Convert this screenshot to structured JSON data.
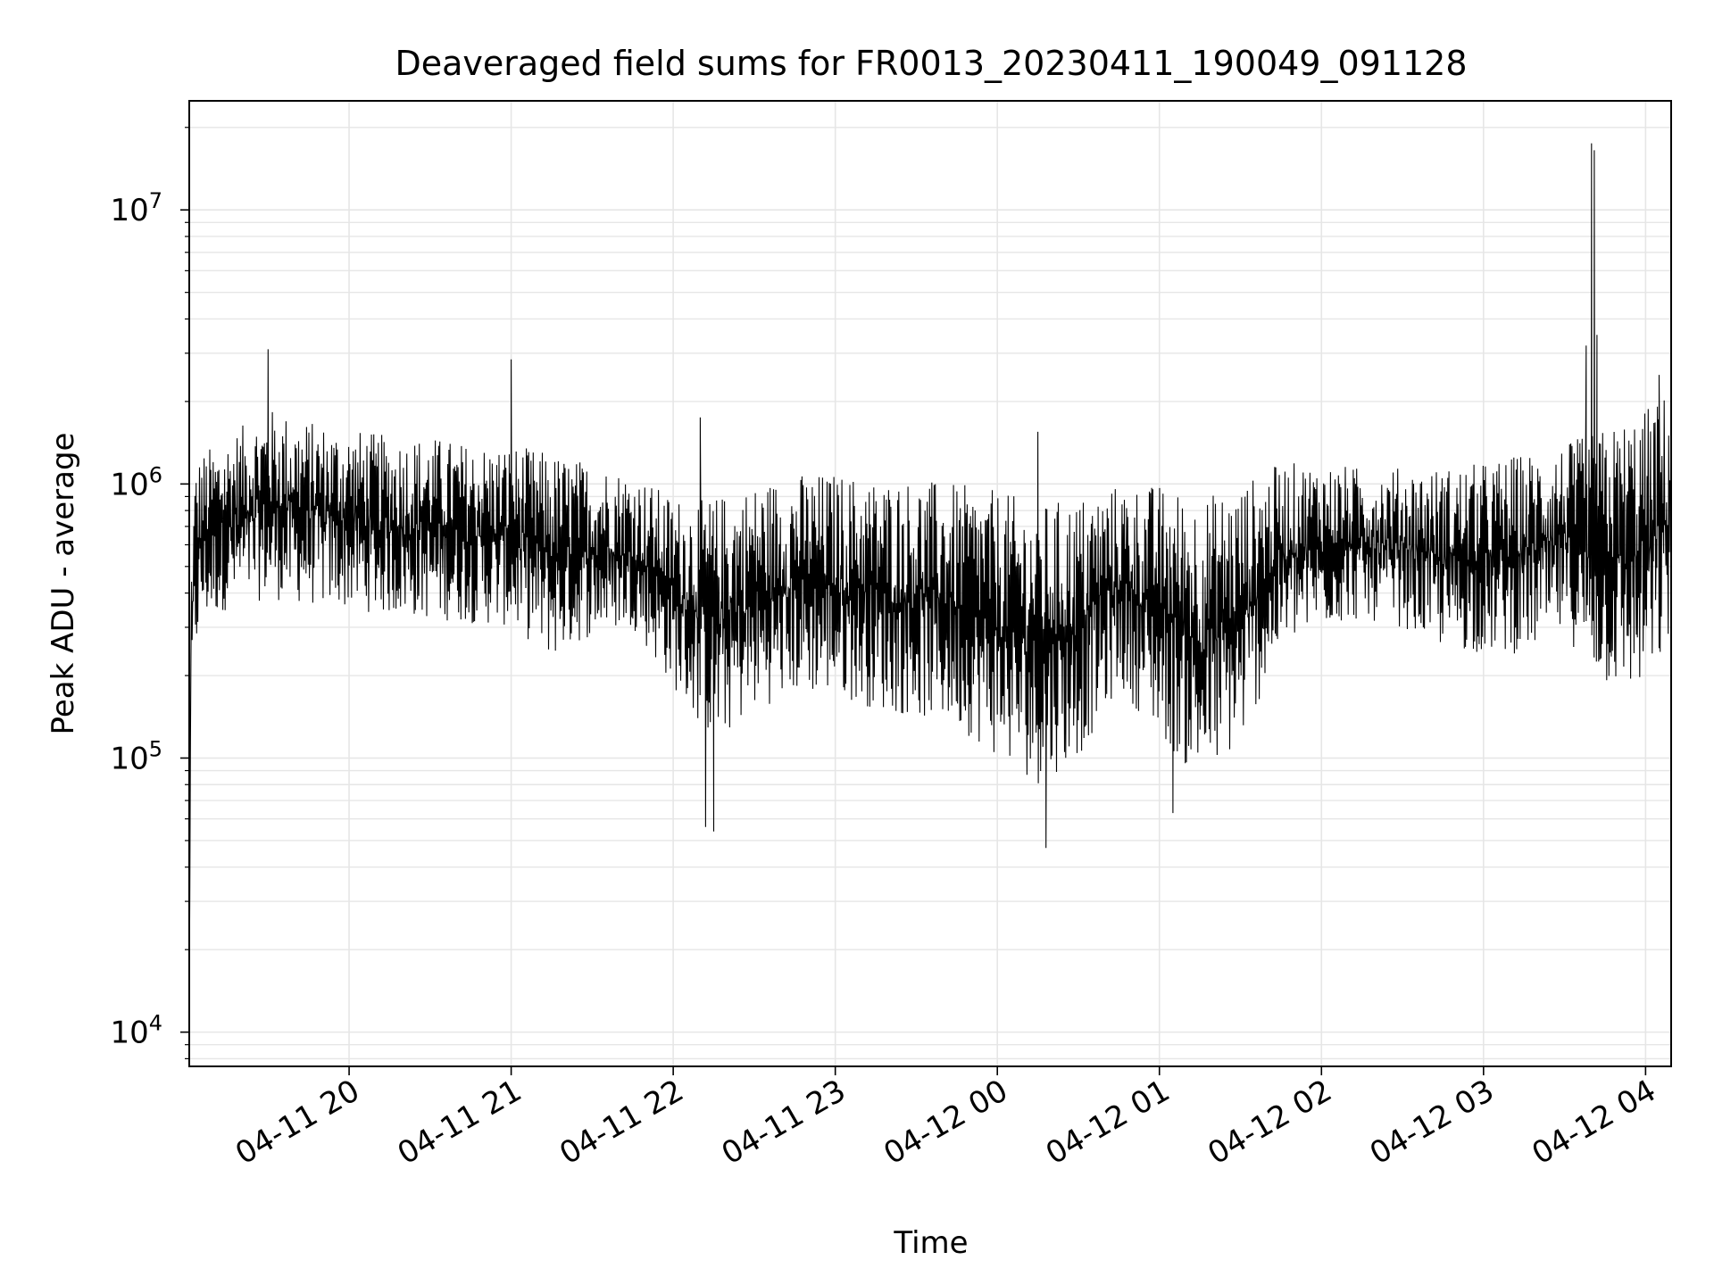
{
  "chart_data": {
    "type": "line",
    "title": "Deaveraged field sums for FR0013_20230411_190049_091128",
    "xlabel": "Time",
    "ylabel": "Peak ADU - average",
    "yscale": "log",
    "ylim": [
      7500,
      25000000
    ],
    "xlim": [
      "2023-04-11 19:00:49",
      "2023-04-12 04:09:28"
    ],
    "grid": true,
    "line_color": "#000000",
    "grid_color": "#e6e6e6",
    "x_ticks": [
      {
        "label": "04-11 20",
        "value": "2023-04-11 20:00"
      },
      {
        "label": "04-11 21",
        "value": "2023-04-11 21:00"
      },
      {
        "label": "04-11 22",
        "value": "2023-04-11 22:00"
      },
      {
        "label": "04-11 23",
        "value": "2023-04-11 23:00"
      },
      {
        "label": "04-12 00",
        "value": "2023-04-12 00:00"
      },
      {
        "label": "04-12 01",
        "value": "2023-04-12 01:00"
      },
      {
        "label": "04-12 02",
        "value": "2023-04-12 02:00"
      },
      {
        "label": "04-12 03",
        "value": "2023-04-12 03:00"
      },
      {
        "label": "04-12 04",
        "value": "2023-04-12 04:00"
      }
    ],
    "y_ticks": [
      {
        "base": "10",
        "exp": "4",
        "value": 10000
      },
      {
        "base": "10",
        "exp": "5",
        "value": 100000
      },
      {
        "base": "10",
        "exp": "6",
        "value": 1000000
      },
      {
        "base": "10",
        "exp": "7",
        "value": 10000000
      }
    ],
    "series": [
      {
        "style": "noisy line; envelope values listed (lo = trough level, hi = peak level)",
        "x": [
          "2023-04-11 19:00:49",
          "2023-04-11 19:01:30",
          "2023-04-11 19:03:00",
          "2023-04-11 19:05:00",
          "2023-04-11 19:15:00",
          "2023-04-11 19:30:00",
          "2023-04-11 19:45:00",
          "2023-04-11 20:00:00",
          "2023-04-11 20:15:00",
          "2023-04-11 20:30:00",
          "2023-04-11 20:45:00",
          "2023-04-11 21:00:00",
          "2023-04-11 21:15:00",
          "2023-04-11 21:30:00",
          "2023-04-11 21:45:00",
          "2023-04-11 22:00:00",
          "2023-04-11 22:15:00",
          "2023-04-11 22:30:00",
          "2023-04-11 22:45:00",
          "2023-04-11 23:00:00",
          "2023-04-11 23:15:00",
          "2023-04-11 23:30:00",
          "2023-04-11 23:45:00",
          "2023-04-12 00:00:00",
          "2023-04-12 00:15:00",
          "2023-04-12 00:30:00",
          "2023-04-12 00:45:00",
          "2023-04-12 01:00:00",
          "2023-04-12 01:15:00",
          "2023-04-12 01:30:00",
          "2023-04-12 01:45:00",
          "2023-04-12 02:00:00",
          "2023-04-12 02:15:00",
          "2023-04-12 02:30:00",
          "2023-04-12 02:45:00",
          "2023-04-12 03:00:00",
          "2023-04-12 03:15:00",
          "2023-04-12 03:30:00",
          "2023-04-12 03:45:00",
          "2023-04-12 04:00:00",
          "2023-04-12 04:09:00"
        ],
        "lo": [
          14000,
          150000,
          220000,
          300000,
          350000,
          380000,
          360000,
          350000,
          330000,
          320000,
          310000,
          300000,
          230000,
          280000,
          300000,
          180000,
          110000,
          150000,
          170000,
          170000,
          150000,
          140000,
          130000,
          100000,
          80000,
          100000,
          180000,
          120000,
          80000,
          110000,
          250000,
          300000,
          320000,
          300000,
          250000,
          240000,
          240000,
          280000,
          180000,
          170000,
          250000
        ],
        "hi": [
          14000,
          500000,
          1200000,
          1300000,
          1500000,
          1900000,
          1700000,
          1600000,
          1500000,
          1500000,
          1400000,
          1400000,
          1300000,
          1200000,
          1100000,
          900000,
          900000,
          1000000,
          1100000,
          1100000,
          1050000,
          1050000,
          1000000,
          950000,
          850000,
          900000,
          1000000,
          1000000,
          900000,
          1000000,
          1200000,
          1200000,
          1150000,
          1150000,
          1150000,
          1200000,
          1300000,
          1400000,
          1600000,
          1900000,
          2200000
        ]
      }
    ],
    "spikes": [
      {
        "x": "2023-04-11 19:30:00",
        "y": 3100000
      },
      {
        "x": "2023-04-11 21:00:00",
        "y": 2850000
      },
      {
        "x": "2023-04-11 22:10:00",
        "y": 1750000
      },
      {
        "x": "2023-04-11 22:12:00",
        "y": 56000
      },
      {
        "x": "2023-04-11 22:15:00",
        "y": 54000
      },
      {
        "x": "2023-04-12 00:15:00",
        "y": 1550000
      },
      {
        "x": "2023-04-12 00:18:00",
        "y": 47000
      },
      {
        "x": "2023-04-12 01:05:00",
        "y": 63000
      },
      {
        "x": "2023-04-12 03:38:00",
        "y": 3200000
      },
      {
        "x": "2023-04-12 03:40:00",
        "y": 17500000
      },
      {
        "x": "2023-04-12 03:41:00",
        "y": 16500000
      },
      {
        "x": "2023-04-12 03:42:00",
        "y": 3500000
      },
      {
        "x": "2023-04-12 04:05:00",
        "y": 2500000
      }
    ]
  }
}
